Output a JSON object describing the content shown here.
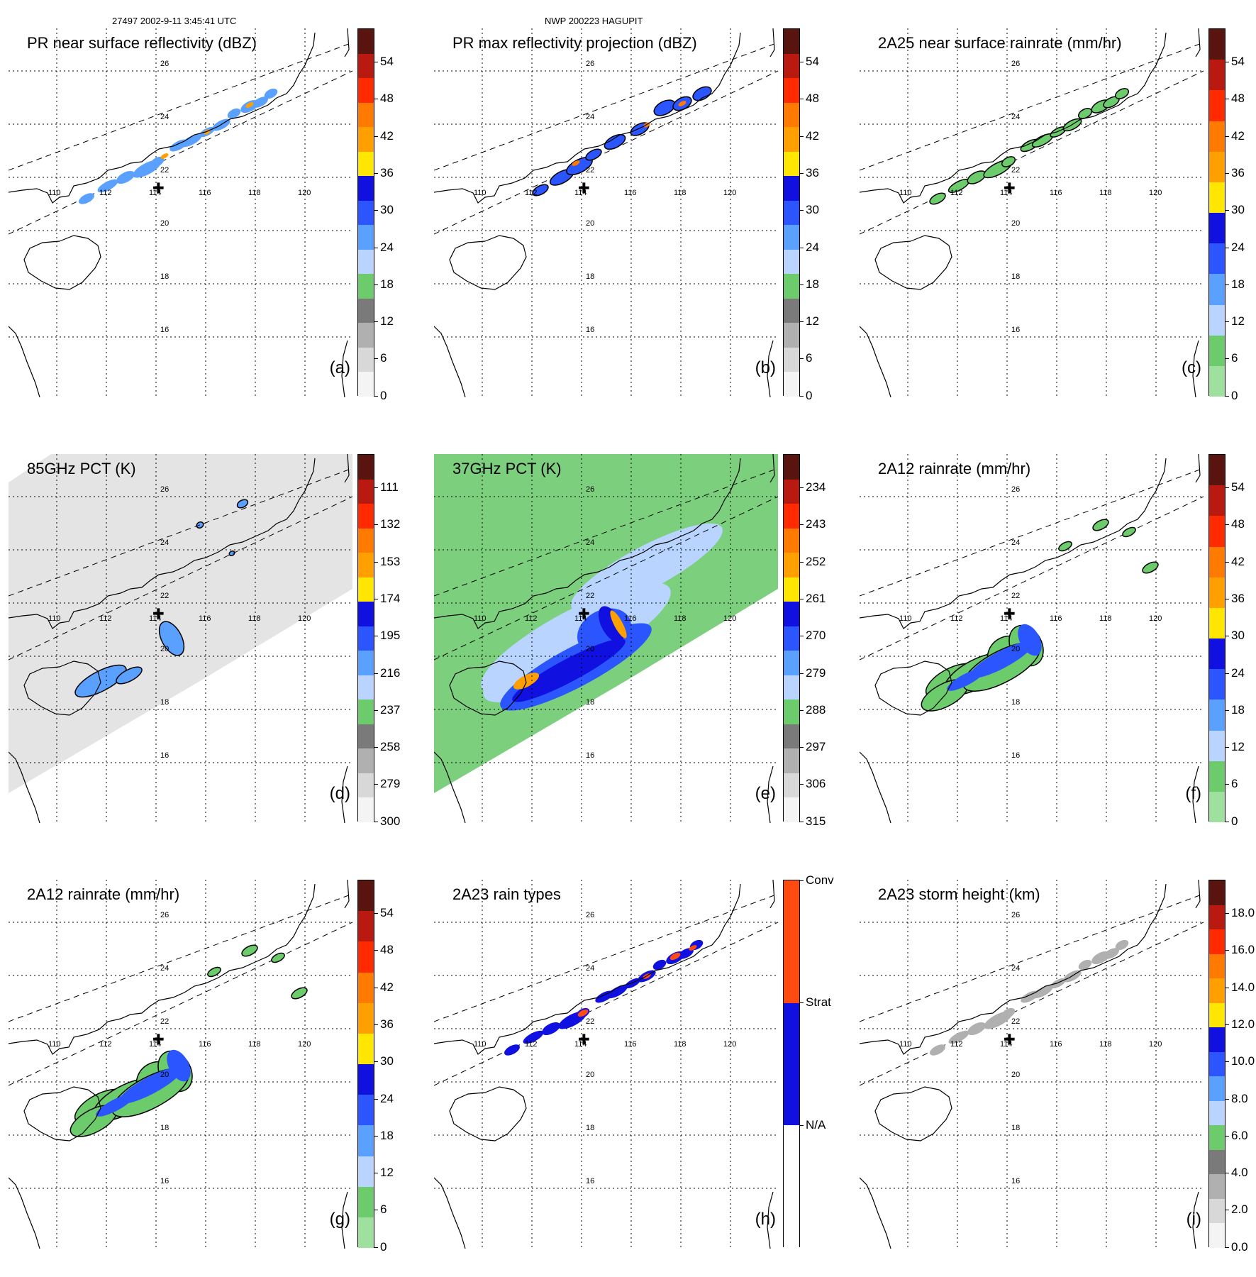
{
  "header": {
    "left": "27497 2002-9-11 3:45:41 UTC",
    "center": "NWP 200223 HAGUPIT"
  },
  "map": {
    "lat_labels": [
      "26",
      "24",
      "22",
      "20",
      "18",
      "16"
    ],
    "lon_labels": [
      "110",
      "112",
      "114",
      "116",
      "118",
      "120"
    ],
    "storm_center_marker": "plus-icon"
  },
  "panels": [
    {
      "id": "a",
      "title": "PR near surface reflectivity (dBZ)",
      "label": "(a)",
      "colorbar": {
        "ticks": [
          "54",
          "48",
          "42",
          "36",
          "30",
          "24",
          "18",
          "12",
          "6",
          "0"
        ],
        "colors": [
          "#5a1410",
          "#b81a10",
          "#ff2a00",
          "#ff7a00",
          "#ffa000",
          "#ffe600",
          "#1010e0",
          "#2a55ff",
          "#5aa0ff",
          "#b8d4ff",
          "#6ccc6c",
          "#7a7a7a",
          "#b0b0b0",
          "#d8d8d8",
          "#f4f4f4"
        ]
      }
    },
    {
      "id": "b",
      "title": "PR max reflectivity projection (dBZ)",
      "label": "(b)",
      "colorbar": {
        "ticks": [
          "54",
          "48",
          "42",
          "36",
          "30",
          "24",
          "18",
          "12",
          "6",
          "0"
        ],
        "colors": [
          "#5a1410",
          "#b81a10",
          "#ff2a00",
          "#ff7a00",
          "#ffa000",
          "#ffe600",
          "#1010e0",
          "#2a55ff",
          "#5aa0ff",
          "#b8d4ff",
          "#6ccc6c",
          "#7a7a7a",
          "#b0b0b0",
          "#d8d8d8",
          "#f4f4f4"
        ]
      }
    },
    {
      "id": "c",
      "title": "2A25 near surface rainrate (mm/hr)",
      "label": "(c)",
      "colorbar": {
        "ticks": [
          "54",
          "48",
          "42",
          "36",
          "30",
          "24",
          "18",
          "12",
          "6",
          "0"
        ],
        "colors": [
          "#5a1410",
          "#b81a10",
          "#ff2a00",
          "#ff7a00",
          "#ffa000",
          "#ffe600",
          "#1010e0",
          "#2a55ff",
          "#5aa0ff",
          "#b8d4ff",
          "#6ccc6c",
          "#9ee09e"
        ]
      }
    },
    {
      "id": "d",
      "title": "85GHz PCT (K)",
      "label": "(d)",
      "colorbar": {
        "ticks": [
          "111",
          "132",
          "153",
          "174",
          "195",
          "216",
          "237",
          "258",
          "279",
          "300"
        ],
        "colors": [
          "#5a1410",
          "#b81a10",
          "#ff2a00",
          "#ff7a00",
          "#ffa000",
          "#ffe600",
          "#1010e0",
          "#2a55ff",
          "#5aa0ff",
          "#b8d4ff",
          "#6ccc6c",
          "#7a7a7a",
          "#b0b0b0",
          "#d8d8d8",
          "#f4f4f4"
        ]
      }
    },
    {
      "id": "e",
      "title": "37GHz PCT (K)",
      "label": "(e)",
      "colorbar": {
        "ticks": [
          "234",
          "243",
          "252",
          "261",
          "270",
          "279",
          "288",
          "297",
          "306",
          "315"
        ],
        "colors": [
          "#5a1410",
          "#b81a10",
          "#ff2a00",
          "#ff7a00",
          "#ffa000",
          "#ffe600",
          "#1010e0",
          "#2a55ff",
          "#5aa0ff",
          "#b8d4ff",
          "#6ccc6c",
          "#7a7a7a",
          "#b0b0b0",
          "#d8d8d8",
          "#f4f4f4"
        ]
      }
    },
    {
      "id": "f",
      "title": "2A12 rainrate (mm/hr)",
      "label": "(f)",
      "colorbar": {
        "ticks": [
          "54",
          "48",
          "42",
          "36",
          "30",
          "24",
          "18",
          "12",
          "6",
          "0"
        ],
        "colors": [
          "#5a1410",
          "#b81a10",
          "#ff2a00",
          "#ff7a00",
          "#ffa000",
          "#ffe600",
          "#1010e0",
          "#2a55ff",
          "#5aa0ff",
          "#b8d4ff",
          "#6ccc6c",
          "#9ee09e"
        ]
      }
    },
    {
      "id": "g",
      "title": "2A12 rainrate (mm/hr)",
      "label": "(g)",
      "colorbar": {
        "ticks": [
          "54",
          "48",
          "42",
          "36",
          "30",
          "24",
          "18",
          "12",
          "6",
          "0"
        ],
        "colors": [
          "#5a1410",
          "#b81a10",
          "#ff2a00",
          "#ff7a00",
          "#ffa000",
          "#ffe600",
          "#1010e0",
          "#2a55ff",
          "#5aa0ff",
          "#b8d4ff",
          "#6ccc6c",
          "#9ee09e"
        ]
      }
    },
    {
      "id": "h",
      "title": "2A23 rain types",
      "label": "(h)",
      "colorbar": {
        "ticks": [
          "Conv",
          "Strat",
          "N/A"
        ],
        "colors": [
          "#ff4a10",
          "#1010e0",
          "#ffffff"
        ]
      }
    },
    {
      "id": "i",
      "title": "2A23 storm height (km)",
      "label": "(i)",
      "colorbar": {
        "ticks": [
          "18.0",
          "16.0",
          "14.0",
          "12.0",
          "10.0",
          "8.0",
          "6.0",
          "4.0",
          "2.0",
          "0.0"
        ],
        "colors": [
          "#5a1410",
          "#b81a10",
          "#ff2a00",
          "#ff7a00",
          "#ffa000",
          "#ffe600",
          "#1010e0",
          "#2a55ff",
          "#5aa0ff",
          "#b8d4ff",
          "#6ccc6c",
          "#7a7a7a",
          "#b0b0b0",
          "#d8d8d8",
          "#f4f4f4"
        ]
      }
    }
  ]
}
